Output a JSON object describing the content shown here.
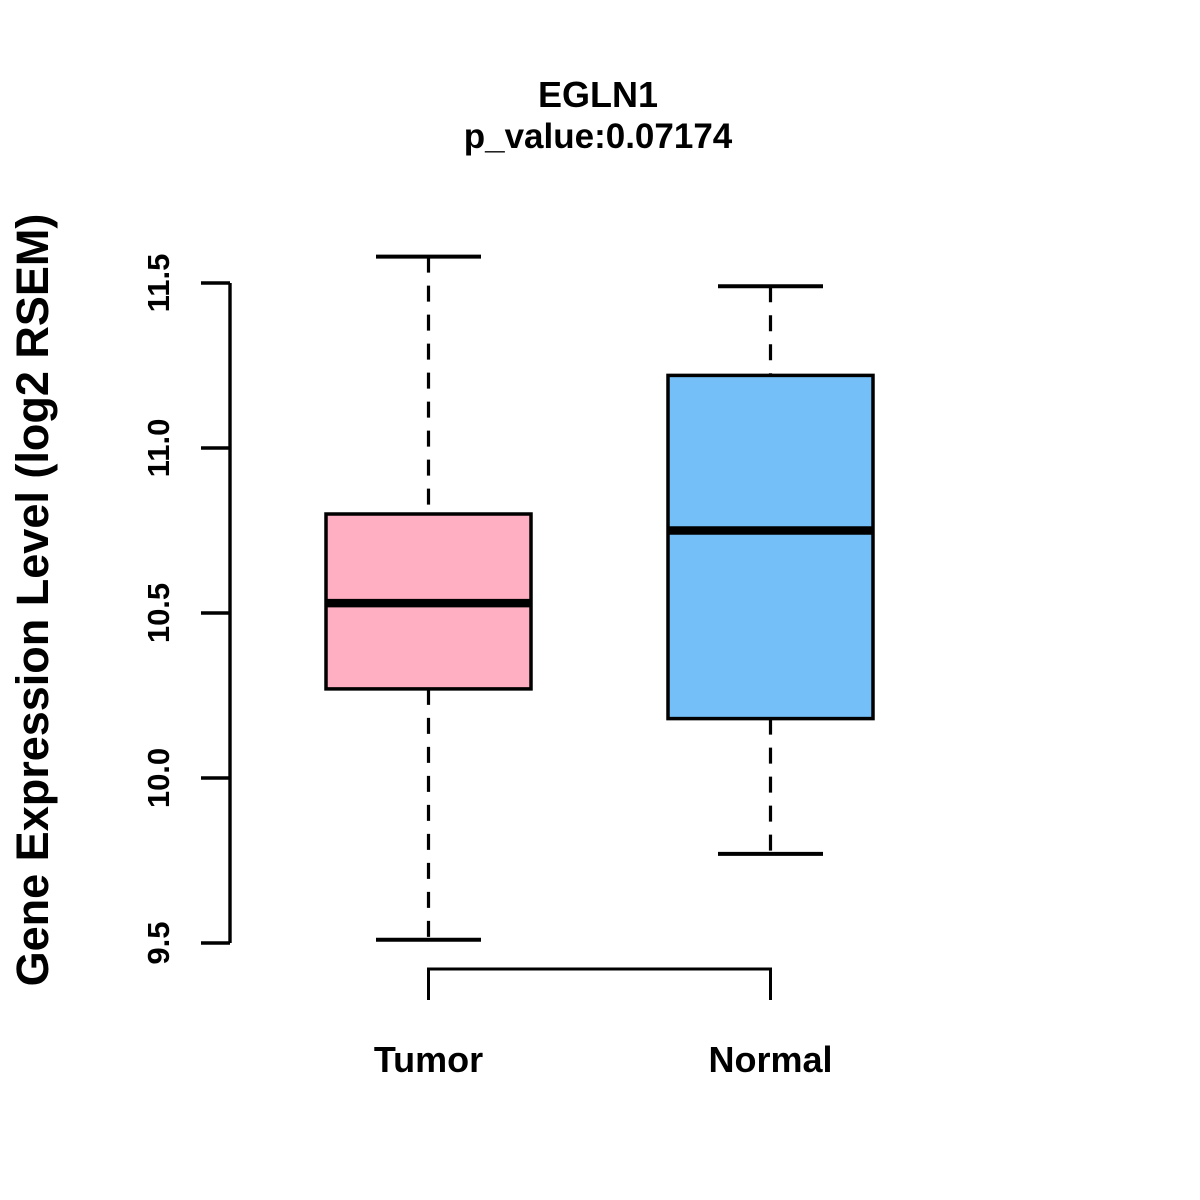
{
  "chart_data": {
    "type": "box",
    "title": "EGLN1",
    "subtitle": "p_value:0.07174",
    "xlabel": "",
    "ylabel": "Gene Expression Level (log2 RSEM)",
    "ylim": [
      9.5,
      11.5
    ],
    "yticks": [
      9.5,
      10.0,
      10.5,
      11.0,
      11.5
    ],
    "grid": false,
    "legend": "none",
    "categories": [
      "Tumor",
      "Normal"
    ],
    "boxes": [
      {
        "label": "Tumor",
        "fill_color": "#FFAFC1",
        "lower_whisker": 9.51,
        "q1": 10.27,
        "median": 10.53,
        "q3": 10.8,
        "upper_whisker": 11.58
      },
      {
        "label": "Normal",
        "fill_color": "#74BFF8",
        "lower_whisker": 9.77,
        "q1": 10.18,
        "median": 10.75,
        "q3": 11.22,
        "upper_whisker": 11.49
      }
    ],
    "annotations": {
      "comparison_bracket": "connects Tumor and Normal below axis"
    },
    "stroke_color": "#000000"
  }
}
